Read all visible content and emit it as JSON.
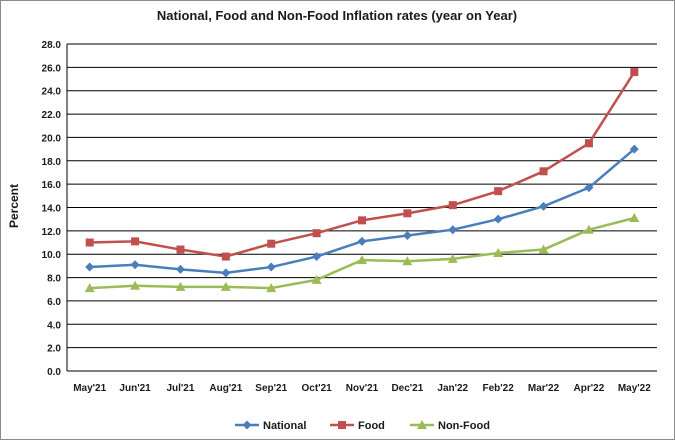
{
  "chart_data": {
    "type": "line",
    "title": "National, Food and Non-Food Inflation rates (year on Year)",
    "xlabel": "",
    "ylabel": "Percent",
    "categories": [
      "May'21",
      "Jun'21",
      "Jul'21",
      "Aug'21",
      "Sep'21",
      "Oct'21",
      "Nov'21",
      "Dec'21",
      "Jan'22",
      "Feb'22",
      "Mar'22",
      "Apr'22",
      "May'22"
    ],
    "ylim": [
      0,
      28
    ],
    "ytick_step": 2,
    "ytick_labels": [
      "0.0",
      "2.0",
      "4.0",
      "6.0",
      "8.0",
      "10.0",
      "12.0",
      "14.0",
      "16.0",
      "18.0",
      "20.0",
      "22.0",
      "24.0",
      "26.0",
      "28.0"
    ],
    "grid": true,
    "legend_position": "bottom",
    "series": [
      {
        "name": "National",
        "color": "#4A7EBB",
        "marker": "diamond",
        "values": [
          8.9,
          9.1,
          8.7,
          8.4,
          8.9,
          9.8,
          11.1,
          11.6,
          12.1,
          13.0,
          14.1,
          15.7,
          19.0
        ]
      },
      {
        "name": "Food",
        "color": "#C0504D",
        "marker": "square",
        "values": [
          11.0,
          11.1,
          10.4,
          9.8,
          10.9,
          11.8,
          12.9,
          13.5,
          14.2,
          15.4,
          17.1,
          19.5,
          25.6
        ]
      },
      {
        "name": "Non-Food",
        "color": "#9BBB59",
        "marker": "triangle",
        "values": [
          7.1,
          7.3,
          7.2,
          7.2,
          7.1,
          7.8,
          9.5,
          9.4,
          9.6,
          10.1,
          10.4,
          12.1,
          13.1
        ]
      }
    ]
  }
}
